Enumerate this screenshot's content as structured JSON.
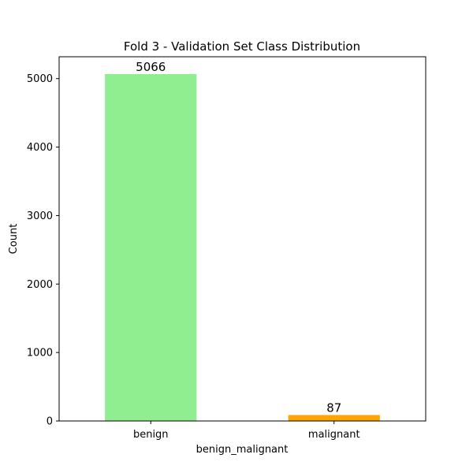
{
  "chart_data": {
    "type": "bar",
    "title": "Fold 3 - Validation Set Class Distribution",
    "xlabel": "benign_malignant",
    "ylabel": "Count",
    "categories": [
      "benign",
      "malignant"
    ],
    "values": [
      5066,
      87
    ],
    "data_labels": [
      "5066",
      "87"
    ],
    "colors": [
      "#90ee90",
      "#ffa500"
    ],
    "yticks": [
      0,
      1000,
      2000,
      3000,
      4000,
      5000
    ],
    "ylim": [
      0,
      5319.3
    ],
    "grid": false,
    "legend": "none"
  }
}
